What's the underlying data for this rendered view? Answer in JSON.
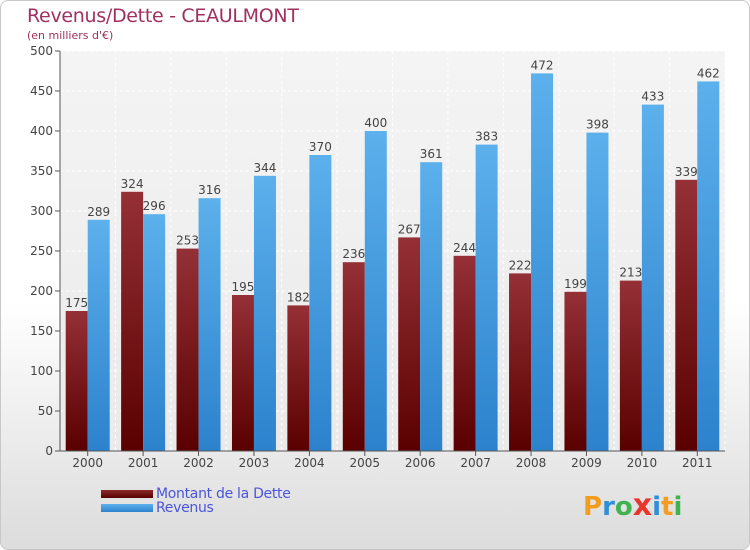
{
  "header": {
    "title": "Revenus/Dette - CEAULMONT",
    "subtitle": "(en milliers d'€)"
  },
  "chart_data": {
    "type": "bar",
    "title": "Revenus/Dette - CEAULMONT",
    "subtitle": "(en milliers d'€)",
    "categories": [
      "2000",
      "2001",
      "2002",
      "2003",
      "2004",
      "2005",
      "2006",
      "2007",
      "2008",
      "2009",
      "2010",
      "2011"
    ],
    "series": [
      {
        "name": "Montant de la Dette",
        "color": "#7a1a1a",
        "values": [
          175,
          324,
          253,
          195,
          182,
          236,
          267,
          244,
          222,
          199,
          213,
          339
        ]
      },
      {
        "name": "Revenus",
        "color": "#4aa3e6",
        "values": [
          289,
          296,
          316,
          344,
          370,
          400,
          361,
          383,
          472,
          398,
          433,
          462
        ]
      }
    ],
    "yticks": [
      0,
      50,
      100,
      150,
      200,
      250,
      300,
      350,
      400,
      450,
      500
    ],
    "ylim": [
      0,
      500
    ],
    "grid": true,
    "legend_position": "bottom-left"
  },
  "logo": {
    "text": "Proxiti",
    "letters": [
      {
        "ch": "P",
        "color": "#f39c1e"
      },
      {
        "ch": "r",
        "color": "#2f8fd8"
      },
      {
        "ch": "o",
        "color": "#3fb34f"
      },
      {
        "ch": "x",
        "color": "#e8362d"
      },
      {
        "ch": "i",
        "color": "#2f8fd8"
      },
      {
        "ch": "t",
        "color": "#f39c1e"
      },
      {
        "ch": "i",
        "color": "#3fb34f"
      }
    ]
  }
}
